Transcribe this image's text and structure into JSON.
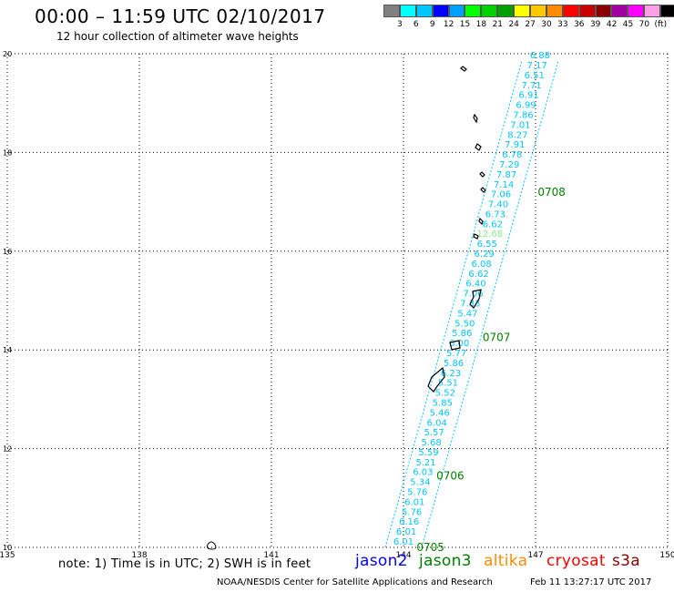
{
  "header": {
    "title": "00:00 – 11:59 UTC 02/10/2017",
    "subtitle": "12 hour collection of altimeter wave heights"
  },
  "legend": {
    "colors": [
      "#808080",
      "#00ffff",
      "#00c8ff",
      "#0000ff",
      "#00a0ff",
      "#00ff00",
      "#00d200",
      "#00a000",
      "#ffff00",
      "#ffc800",
      "#ff8c00",
      "#ff0000",
      "#c80000",
      "#8b0000",
      "#a000a0",
      "#ff00ff",
      "#ffa0e6",
      "#000000"
    ],
    "labels": [
      "3",
      "6",
      "9",
      "12",
      "15",
      "18",
      "21",
      "24",
      "27",
      "30",
      "33",
      "36",
      "39",
      "42",
      "45",
      "70",
      "(ft)"
    ]
  },
  "axes": {
    "x_ticks": [
      "135",
      "138",
      "141",
      "144",
      "147",
      "150"
    ],
    "y_ticks": [
      "10",
      "12",
      "14",
      "16",
      "18",
      "20"
    ]
  },
  "chart_data": {
    "type": "scatter",
    "x_unit": "degrees longitude",
    "y_unit": "degrees latitude",
    "xlim": [
      135,
      150
    ],
    "ylim": [
      10,
      20
    ],
    "grid": true,
    "track_color": "#00c8ff",
    "track_start": [
      144.0,
      10.0
    ],
    "track_end": [
      147.1,
      19.85
    ],
    "swh_labels": [
      "6.01",
      "6.01",
      "6.16",
      "5.76",
      "6.01",
      "5.76",
      "5.34",
      "6.03",
      "5.21",
      "5.59",
      "5.68",
      "5.57",
      "6.04",
      "5.46",
      "5.85",
      "5.52",
      "5.51",
      "6.23",
      "5.86",
      "5.77",
      "6.00",
      "5.86",
      "5.50",
      "5.47",
      "7.33",
      "7.06",
      "6.40",
      "6.62",
      "6.08",
      "6.29",
      "6.55",
      "12.68",
      "6.62",
      "6.73",
      "7.40",
      "7.06",
      "7.14",
      "7.87",
      "7.29",
      "6.78",
      "7.91",
      "8.27",
      "7.01",
      "7.86",
      "6.99",
      "6.91",
      "7.71",
      "6.51",
      "7.17",
      "6.88"
    ],
    "highlight": {
      "label": "12.68",
      "color": "#90ee90"
    },
    "time_markers": [
      {
        "label": "0705",
        "lon": 144.05,
        "lat": 10.0
      },
      {
        "label": "0706",
        "lon": 144.5,
        "lat": 11.45
      },
      {
        "label": "0707",
        "lon": 145.55,
        "lat": 14.25
      },
      {
        "label": "0708",
        "lon": 146.8,
        "lat": 17.2
      }
    ],
    "marker_color": "#008000"
  },
  "footer": {
    "note": "note: 1) Time is in UTC; 2) SWH is in feet",
    "satellites": [
      {
        "name": "jason2",
        "color": "#0000ff"
      },
      {
        "name": "jason3",
        "color": "#008000"
      },
      {
        "name": "altika",
        "color": "#ff8c00"
      },
      {
        "name": "cryosat",
        "color": "#ff0000"
      },
      {
        "name": "s3a",
        "color": "#8b0000"
      }
    ],
    "credit": "NOAA/NESDIS Center for Satellite Applications and Research",
    "timestamp": "Feb 11 13:27:17 UTC 2017"
  }
}
